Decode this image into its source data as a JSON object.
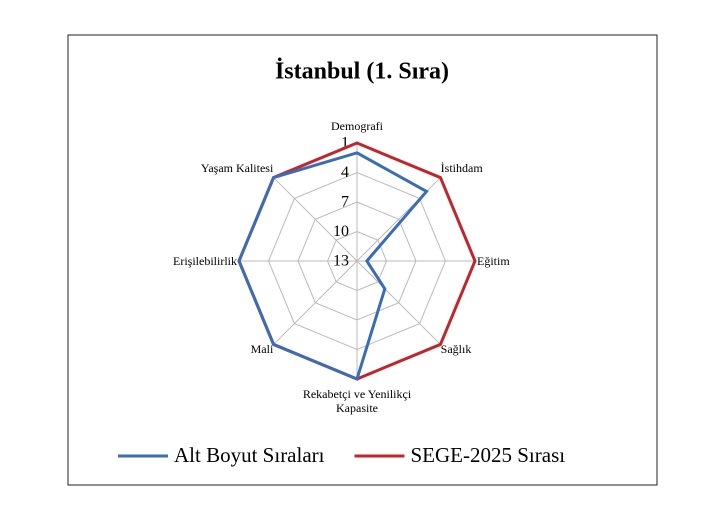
{
  "chart_data": {
    "type": "radar",
    "title": "İstanbul (1. Sıra)",
    "categories": [
      "Demografi",
      "İstihdam",
      "Eğitim",
      "Sağlık",
      "Rekabetçi ve Yenilikçi Kapasite",
      "Mali",
      "Erişilebilirlik",
      "Yaşam Kalitesi"
    ],
    "series": [
      {
        "name": "SEGE-2025 Sırası",
        "color": "#c0272d",
        "values": [
          1,
          1,
          1,
          1,
          1,
          1,
          1,
          1
        ]
      },
      {
        "name": "Alt Boyut Sıraları",
        "color": "#3a6db5",
        "values": [
          2,
          3,
          12,
          9,
          1,
          1,
          1,
          1
        ]
      }
    ],
    "legend_order": [
      1,
      0
    ],
    "rlim": [
      13,
      1
    ],
    "rticks": [
      1,
      4,
      7,
      10,
      13
    ],
    "grid": true
  }
}
